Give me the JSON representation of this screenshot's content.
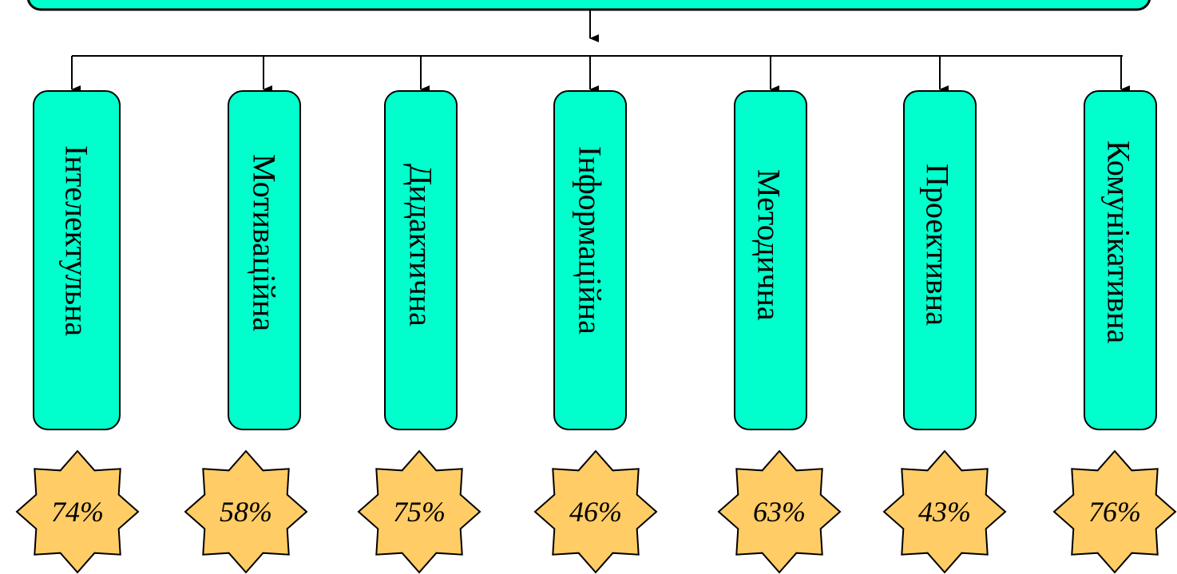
{
  "colors": {
    "box_fill": "#00FFCC",
    "box_stroke": "#000000",
    "star_fill": "#FFCC66",
    "star_stroke": "#000000",
    "line": "#000000"
  },
  "functions": [
    {
      "label": "Інтелектульна",
      "percent": "74%"
    },
    {
      "label": "Мотиваційна",
      "percent": "58%"
    },
    {
      "label": "Дидактична",
      "percent": "75%"
    },
    {
      "label": "Інформаційна",
      "percent": "46%"
    },
    {
      "label": "Методична",
      "percent": "63%"
    },
    {
      "label": "Проективна",
      "percent": "43%"
    },
    {
      "label": "Комунікативна",
      "percent": "76%"
    }
  ]
}
